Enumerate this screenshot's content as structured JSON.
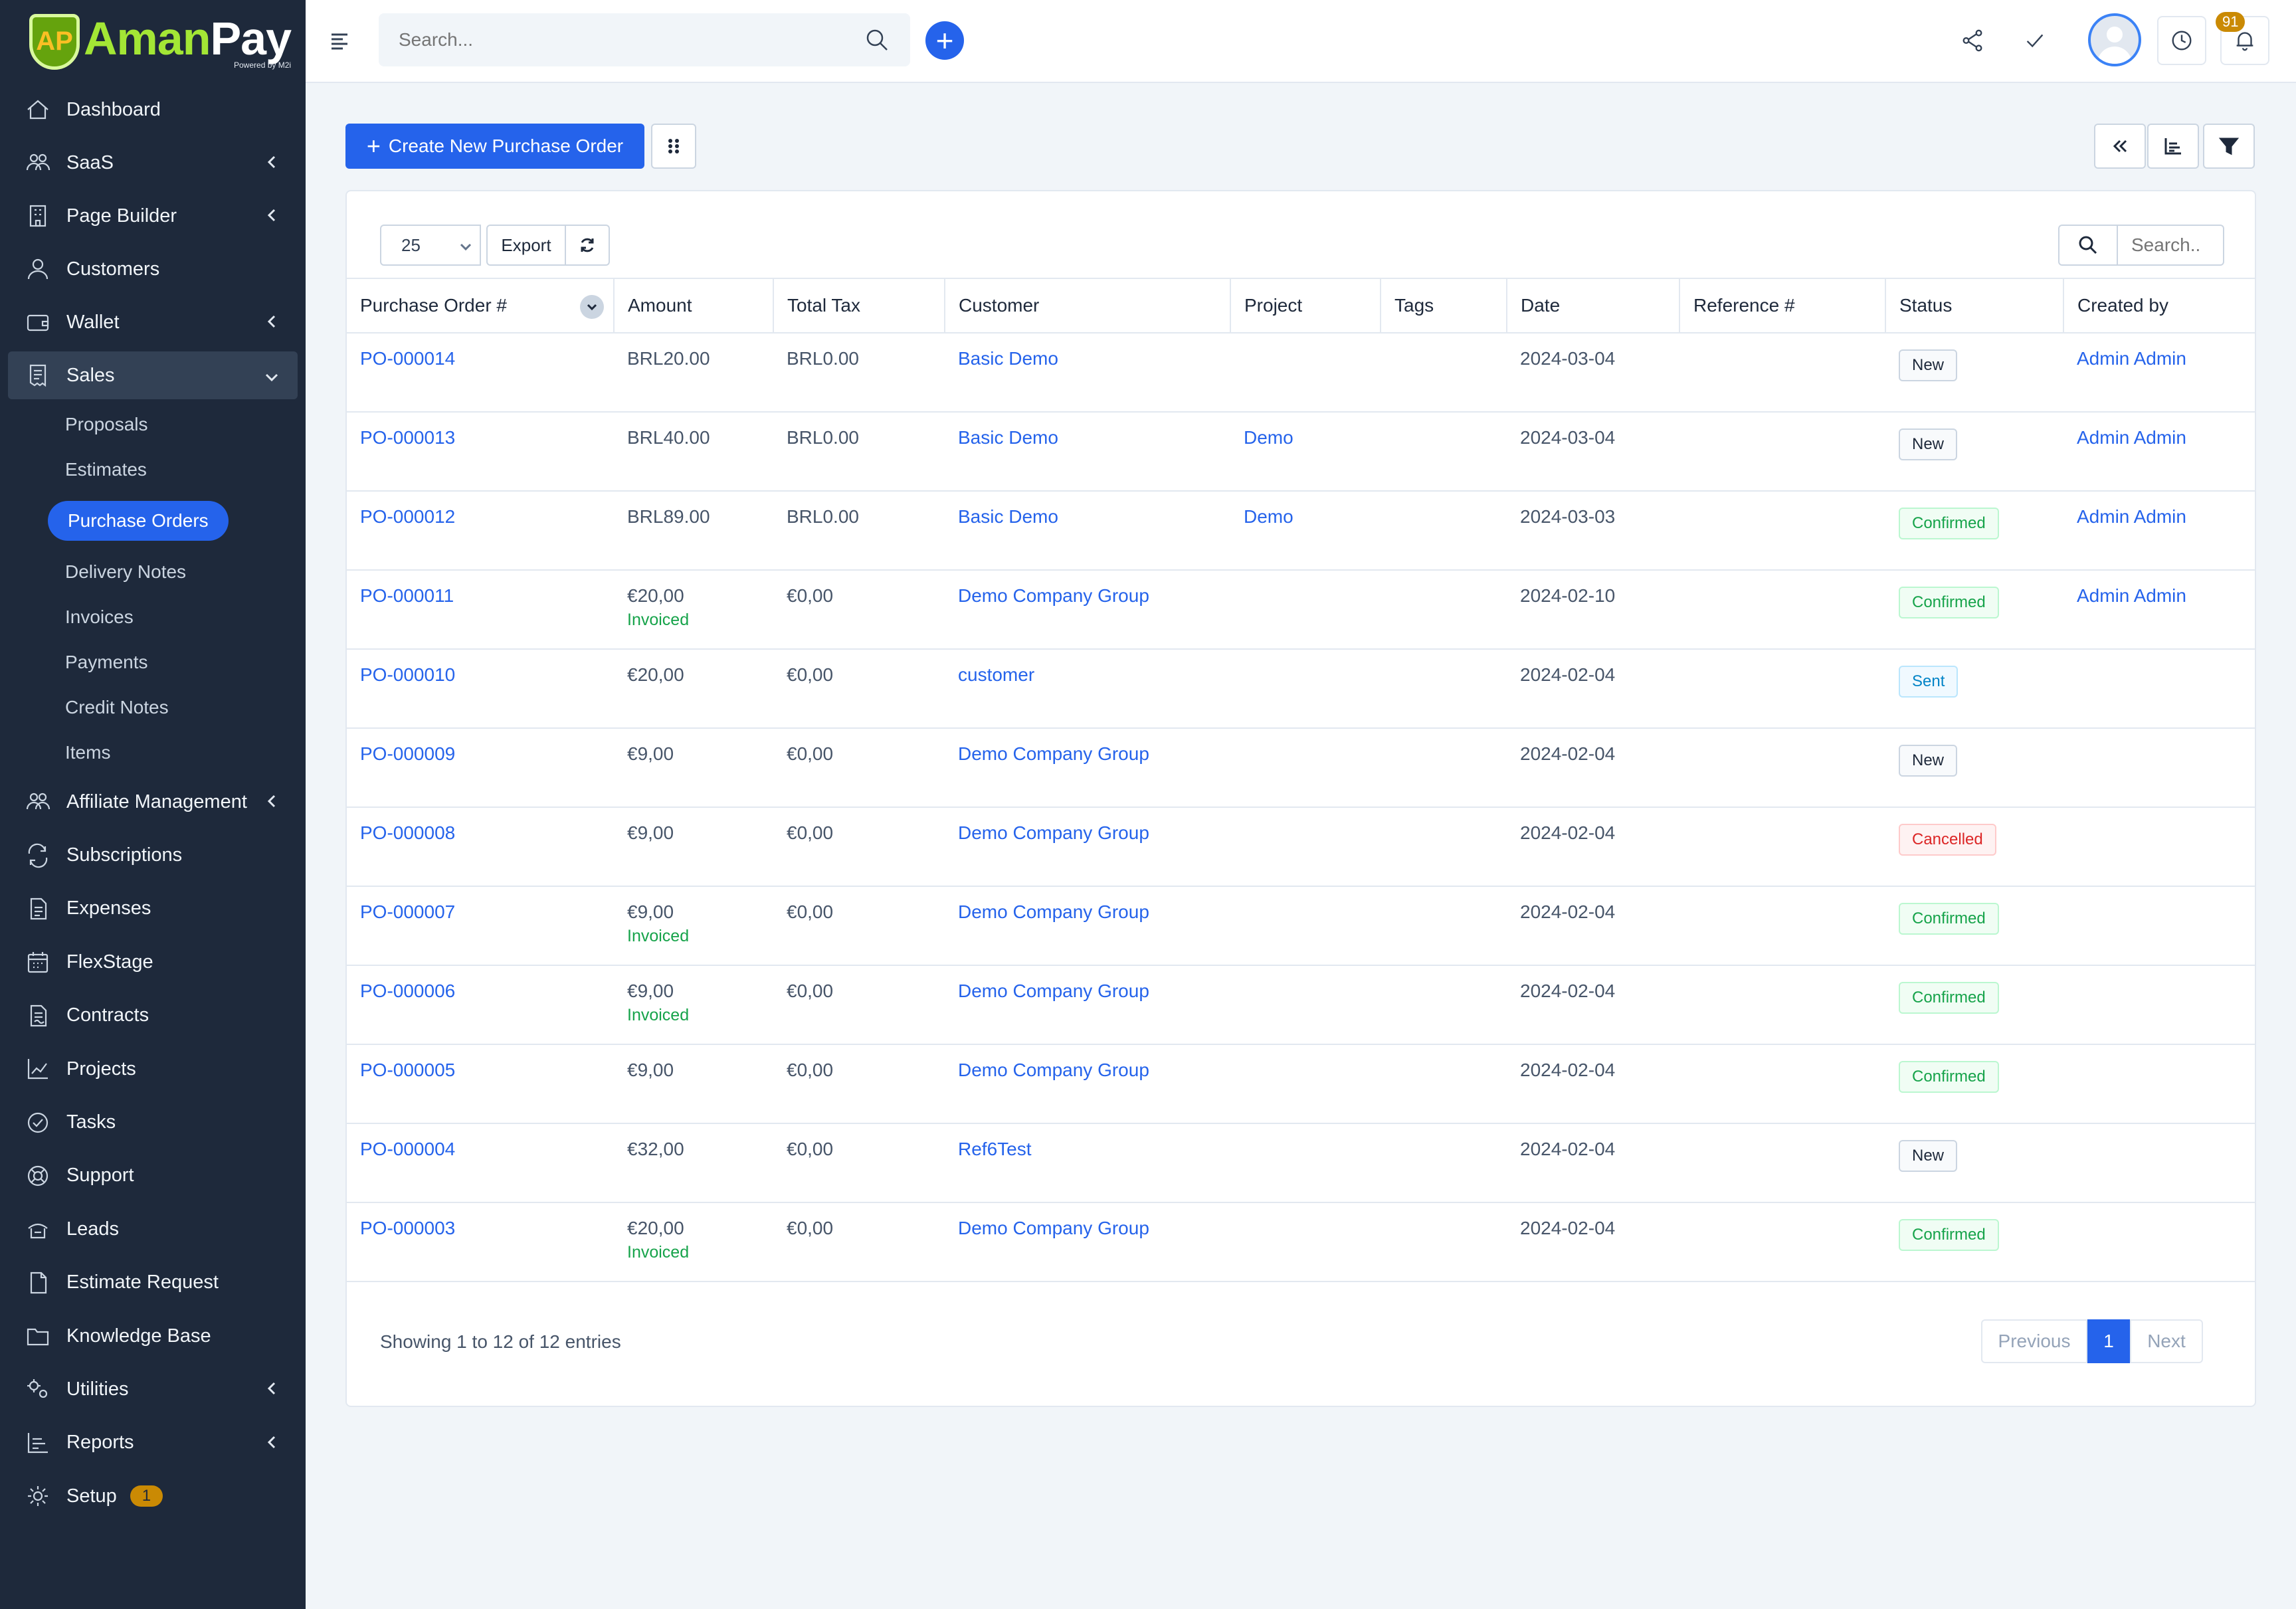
{
  "brand": {
    "name_part1": "Aman",
    "name_part2": "Pay",
    "sub": "Powered by M2i",
    "mark": "AP"
  },
  "topbar": {
    "search_placeholder": "Search...",
    "notifications_count": "91"
  },
  "sidebar": {
    "items": [
      {
        "label": "Dashboard",
        "icon": "home-icon"
      },
      {
        "label": "SaaS",
        "icon": "users-icon",
        "chevron": true
      },
      {
        "label": "Page Builder",
        "icon": "building-icon",
        "chevron": true
      },
      {
        "label": "Customers",
        "icon": "user-icon"
      },
      {
        "label": "Wallet",
        "icon": "wallet-icon",
        "chevron": true
      },
      {
        "label": "Sales",
        "icon": "receipt-icon",
        "expanded": true
      }
    ],
    "sales_sub": [
      "Proposals",
      "Estimates",
      "Purchase Orders",
      "Delivery Notes",
      "Invoices",
      "Payments",
      "Credit Notes",
      "Items"
    ],
    "items_after": [
      {
        "label": "Affiliate Management",
        "icon": "users-icon",
        "chevron": true
      },
      {
        "label": "Subscriptions",
        "icon": "repeat-icon"
      },
      {
        "label": "Expenses",
        "icon": "file-icon"
      },
      {
        "label": "FlexStage",
        "icon": "calendar-icon"
      },
      {
        "label": "Contracts",
        "icon": "contract-icon"
      },
      {
        "label": "Projects",
        "icon": "chart-icon"
      },
      {
        "label": "Tasks",
        "icon": "check-circle-icon"
      },
      {
        "label": "Support",
        "icon": "lifebuoy-icon"
      },
      {
        "label": "Leads",
        "icon": "leads-icon"
      },
      {
        "label": "Estimate Request",
        "icon": "document-icon"
      },
      {
        "label": "Knowledge Base",
        "icon": "folder-icon"
      },
      {
        "label": "Utilities",
        "icon": "cogs-icon",
        "chevron": true
      },
      {
        "label": "Reports",
        "icon": "bar-chart-icon",
        "chevron": true
      },
      {
        "label": "Setup",
        "icon": "gear-icon",
        "badge": "1"
      }
    ]
  },
  "toolbar": {
    "create_label": "Create New Purchase Order"
  },
  "table_controls": {
    "page_size": "25",
    "export_label": "Export",
    "search_placeholder": "Search.."
  },
  "table": {
    "columns": [
      "Purchase Order #",
      "Amount",
      "Total Tax",
      "Customer",
      "Project",
      "Tags",
      "Date",
      "Reference #",
      "Status",
      "Created by"
    ],
    "rows": [
      {
        "po": "PO-000014",
        "amount": "BRL20.00",
        "invoiced": "",
        "tax": "BRL0.00",
        "customer": "Basic Demo",
        "project": "",
        "tags": "",
        "date": "2024-03-04",
        "ref": "",
        "status": "New",
        "status_class": "st-new",
        "created_by": "Admin Admin"
      },
      {
        "po": "PO-000013",
        "amount": "BRL40.00",
        "invoiced": "",
        "tax": "BRL0.00",
        "customer": "Basic Demo",
        "project": "Demo",
        "tags": "",
        "date": "2024-03-04",
        "ref": "",
        "status": "New",
        "status_class": "st-new",
        "created_by": "Admin Admin"
      },
      {
        "po": "PO-000012",
        "amount": "BRL89.00",
        "invoiced": "",
        "tax": "BRL0.00",
        "customer": "Basic Demo",
        "project": "Demo",
        "tags": "",
        "date": "2024-03-03",
        "ref": "",
        "status": "Confirmed",
        "status_class": "st-confirmed",
        "created_by": "Admin Admin"
      },
      {
        "po": "PO-000011",
        "amount": "€20,00",
        "invoiced": "Invoiced",
        "tax": "€0,00",
        "customer": "Demo Company Group",
        "project": "",
        "tags": "",
        "date": "2024-02-10",
        "ref": "",
        "status": "Confirmed",
        "status_class": "st-confirmed",
        "created_by": "Admin Admin"
      },
      {
        "po": "PO-000010",
        "amount": "€20,00",
        "invoiced": "",
        "tax": "€0,00",
        "customer": "customer",
        "project": "",
        "tags": "",
        "date": "2024-02-04",
        "ref": "",
        "status": "Sent",
        "status_class": "st-sent",
        "created_by": ""
      },
      {
        "po": "PO-000009",
        "amount": "€9,00",
        "invoiced": "",
        "tax": "€0,00",
        "customer": "Demo Company Group",
        "project": "",
        "tags": "",
        "date": "2024-02-04",
        "ref": "",
        "status": "New",
        "status_class": "st-new",
        "created_by": ""
      },
      {
        "po": "PO-000008",
        "amount": "€9,00",
        "invoiced": "",
        "tax": "€0,00",
        "customer": "Demo Company Group",
        "project": "",
        "tags": "",
        "date": "2024-02-04",
        "ref": "",
        "status": "Cancelled",
        "status_class": "st-cancelled",
        "created_by": ""
      },
      {
        "po": "PO-000007",
        "amount": "€9,00",
        "invoiced": "Invoiced",
        "tax": "€0,00",
        "customer": "Demo Company Group",
        "project": "",
        "tags": "",
        "date": "2024-02-04",
        "ref": "",
        "status": "Confirmed",
        "status_class": "st-confirmed",
        "created_by": ""
      },
      {
        "po": "PO-000006",
        "amount": "€9,00",
        "invoiced": "Invoiced",
        "tax": "€0,00",
        "customer": "Demo Company Group",
        "project": "",
        "tags": "",
        "date": "2024-02-04",
        "ref": "",
        "status": "Confirmed",
        "status_class": "st-confirmed",
        "created_by": ""
      },
      {
        "po": "PO-000005",
        "amount": "€9,00",
        "invoiced": "",
        "tax": "€0,00",
        "customer": "Demo Company Group",
        "project": "",
        "tags": "",
        "date": "2024-02-04",
        "ref": "",
        "status": "Confirmed",
        "status_class": "st-confirmed",
        "created_by": ""
      },
      {
        "po": "PO-000004",
        "amount": "€32,00",
        "invoiced": "",
        "tax": "€0,00",
        "customer": "Ref6Test",
        "project": "",
        "tags": "",
        "date": "2024-02-04",
        "ref": "",
        "status": "New",
        "status_class": "st-new",
        "created_by": ""
      },
      {
        "po": "PO-000003",
        "amount": "€20,00",
        "invoiced": "Invoiced",
        "tax": "€0,00",
        "customer": "Demo Company Group",
        "project": "",
        "tags": "",
        "date": "2024-02-04",
        "ref": "",
        "status": "Confirmed",
        "status_class": "st-confirmed",
        "created_by": ""
      }
    ]
  },
  "footer": {
    "showing": "Showing 1 to 12 of 12 entries",
    "prev": "Previous",
    "current": "1",
    "next": "Next"
  }
}
